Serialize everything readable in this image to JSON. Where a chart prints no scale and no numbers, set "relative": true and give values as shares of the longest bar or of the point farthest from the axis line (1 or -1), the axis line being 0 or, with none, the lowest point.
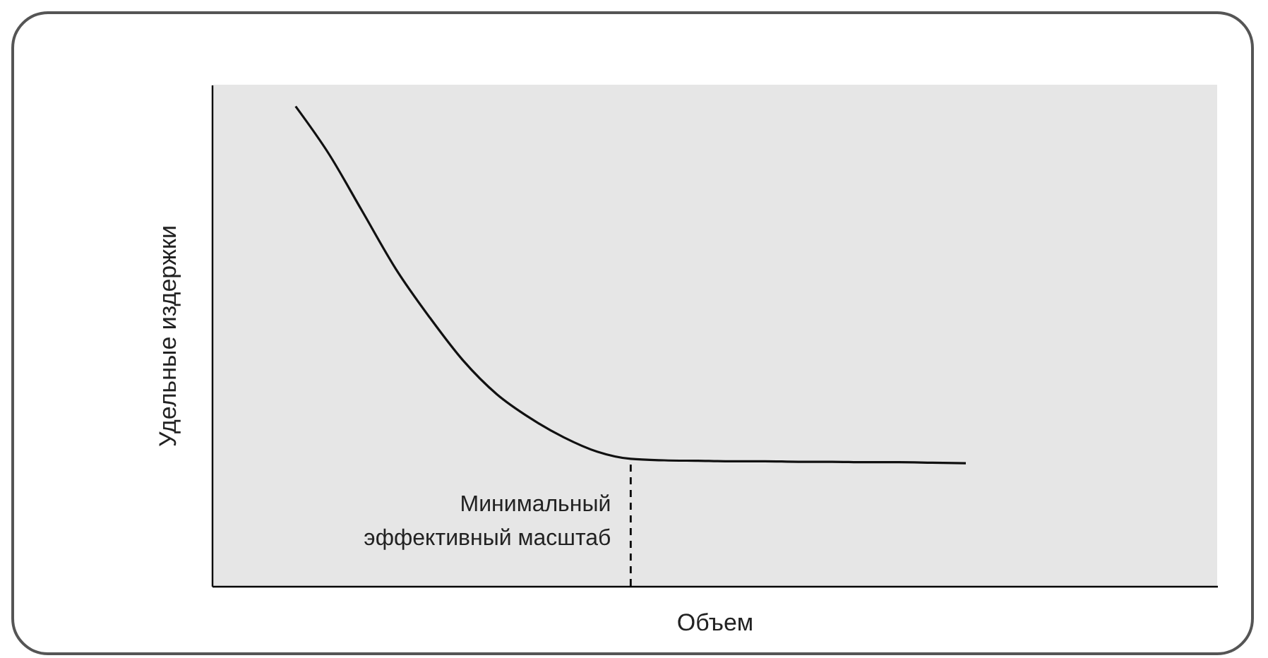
{
  "chart_data": {
    "type": "line",
    "relative": true,
    "xlabel": "Объем",
    "ylabel": "Удельные издержки",
    "grid": false,
    "categories": [
      null,
      null,
      null,
      null,
      null,
      null,
      null,
      null,
      null,
      null,
      null,
      null,
      null,
      null,
      null,
      null,
      null,
      null,
      null,
      null,
      null,
      null,
      null,
      null,
      null,
      null,
      null,
      null,
      null,
      null
    ],
    "series": [
      {
        "color": "#111111",
        "values": [
          null,
          null,
          1.0,
          0.9,
          0.78,
          0.66,
          0.56,
          0.47,
          0.4,
          0.35,
          0.31,
          0.28,
          0.265,
          0.262,
          0.261,
          0.26,
          0.26,
          0.259,
          0.259,
          0.258,
          0.258,
          0.257,
          0.256,
          null,
          null,
          null,
          null,
          null,
          null,
          null
        ]
      }
    ],
    "annotations": [
      "Минимальный эффективный масштаб"
    ]
  }
}
